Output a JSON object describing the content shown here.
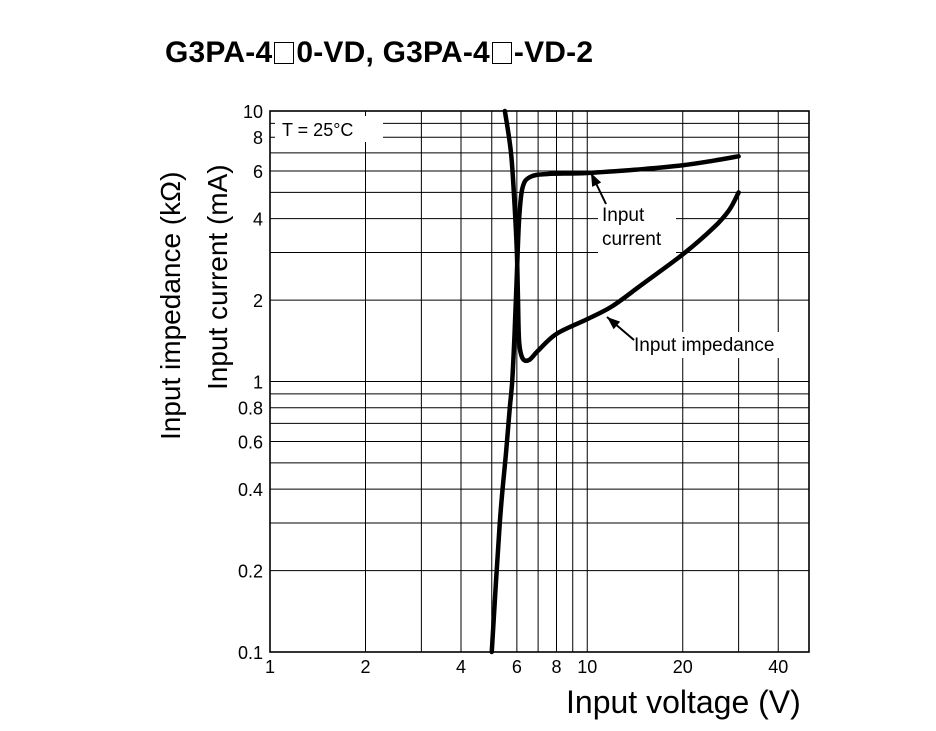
{
  "title": {
    "part1": "G3PA-4",
    "part2": "0-VD, G3PA-4",
    "part3": "-VD-2"
  },
  "chart_data": {
    "type": "line",
    "title": "G3PA-4□0-VD, G3PA-4□-VD-2",
    "xlabel": "Input voltage (V)",
    "ylabel_outer": "Input impedance (kΩ)",
    "ylabel_inner": "Input current (mA)",
    "x_scale": "log",
    "y_scale": "log",
    "xlim": [
      1,
      50
    ],
    "ylim": [
      0.1,
      10
    ],
    "x_ticks": [
      1,
      2,
      4,
      6,
      8,
      10,
      20,
      40
    ],
    "x_tick_labels": [
      "1",
      "2",
      "4",
      "6",
      "8",
      "10",
      "20",
      "40"
    ],
    "y_ticks": [
      0.1,
      0.2,
      0.4,
      0.6,
      0.8,
      1,
      2,
      4,
      6,
      8,
      10
    ],
    "y_tick_labels": [
      "0.1",
      "0.2",
      "0.4",
      "0.6",
      "0.8",
      "1",
      "2",
      "4",
      "6",
      "8",
      "10"
    ],
    "grid": true,
    "condition_label": "T = 25°C",
    "annotations": [
      {
        "lines": [
          "Input",
          "current"
        ],
        "series": "Input current"
      },
      {
        "lines": [
          "Input impedance"
        ],
        "series": "Input impedance"
      }
    ],
    "series": [
      {
        "name": "Input current",
        "points": [
          [
            5.0,
            0.1
          ],
          [
            5.3,
            0.3
          ],
          [
            5.55,
            0.55
          ],
          [
            5.7,
            0.8
          ],
          [
            5.8,
            1.0
          ],
          [
            5.9,
            1.5
          ],
          [
            6.0,
            2.5
          ],
          [
            6.1,
            4.0
          ],
          [
            6.25,
            5.2
          ],
          [
            6.6,
            5.7
          ],
          [
            7.5,
            5.85
          ],
          [
            10,
            5.9
          ],
          [
            15,
            6.1
          ],
          [
            20,
            6.3
          ],
          [
            25,
            6.55
          ],
          [
            30,
            6.8
          ]
        ]
      },
      {
        "name": "Input impedance",
        "points": [
          [
            5.5,
            10
          ],
          [
            5.75,
            7.0
          ],
          [
            5.9,
            4.5
          ],
          [
            6.0,
            3.0
          ],
          [
            6.05,
            2.0
          ],
          [
            6.1,
            1.4
          ],
          [
            6.25,
            1.22
          ],
          [
            6.55,
            1.2
          ],
          [
            7.0,
            1.3
          ],
          [
            8.0,
            1.5
          ],
          [
            10,
            1.7
          ],
          [
            12,
            1.9
          ],
          [
            15,
            2.3
          ],
          [
            20,
            2.95
          ],
          [
            25,
            3.7
          ],
          [
            28,
            4.3
          ],
          [
            30,
            5.0
          ]
        ]
      }
    ]
  }
}
